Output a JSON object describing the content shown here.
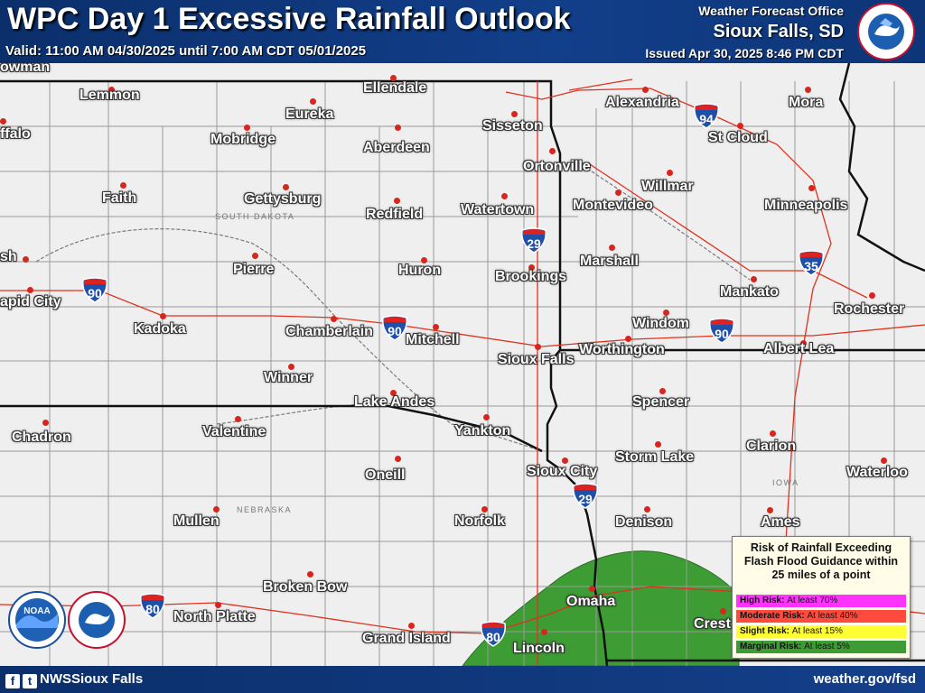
{
  "header": {
    "title": "WPC Day 1 Excessive Rainfall Outlook",
    "valid": "Valid: 11:00 AM 04/30/2025 until 7:00 AM CDT 05/01/2025",
    "wfo": "Weather Forecast Office",
    "office": "Sioux Falls, SD",
    "issued": "Issued Apr 30, 2025 8:46 PM CDT",
    "logo_text": "NATIONAL WEATHER SERVICE"
  },
  "colors": {
    "header_bg": "#0b2f6b",
    "marginal": "#3e9c35",
    "slight": "#ffff33",
    "moderate": "#ff3333",
    "high": "#ff33ff",
    "city_dot": "#d7261e",
    "highway": "#e0301e"
  },
  "cities": [
    {
      "name": "owman"
    },
    {
      "name": "Lemmon"
    },
    {
      "name": "Ellendale"
    },
    {
      "name": "Sisseton"
    },
    {
      "name": "Alexandria"
    },
    {
      "name": "Mora"
    },
    {
      "name": "Eureka"
    },
    {
      "name": "Mobridge"
    },
    {
      "name": "Aberdeen"
    },
    {
      "name": "St Cloud"
    },
    {
      "name": "ffalo"
    },
    {
      "name": "Ortonville"
    },
    {
      "name": "Willmar"
    },
    {
      "name": "Faith"
    },
    {
      "name": "Gettysburg"
    },
    {
      "name": "Redfield"
    },
    {
      "name": "Watertown"
    },
    {
      "name": "Montevideo"
    },
    {
      "name": "Minneapolis"
    },
    {
      "name": "Pierre"
    },
    {
      "name": "Huron"
    },
    {
      "name": "Marshall"
    },
    {
      "name": "Brookings"
    },
    {
      "name": "sh"
    },
    {
      "name": "apid City"
    },
    {
      "name": "Mankato"
    },
    {
      "name": "Rochester"
    },
    {
      "name": "Kadoka"
    },
    {
      "name": "Chamberlain"
    },
    {
      "name": "Mitchell"
    },
    {
      "name": "Windom"
    },
    {
      "name": "Worthington"
    },
    {
      "name": "Sioux Falls"
    },
    {
      "name": "Albert Lea"
    },
    {
      "name": "Winner"
    },
    {
      "name": "Lake Andes"
    },
    {
      "name": "Spencer"
    },
    {
      "name": "Chadron"
    },
    {
      "name": "Valentine"
    },
    {
      "name": "Yankton"
    },
    {
      "name": "Clarion"
    },
    {
      "name": "Storm Lake"
    },
    {
      "name": "Oneill"
    },
    {
      "name": "Sioux City"
    },
    {
      "name": "Waterloo"
    },
    {
      "name": "Mullen"
    },
    {
      "name": "Norfolk"
    },
    {
      "name": "Denison"
    },
    {
      "name": "Ames"
    },
    {
      "name": "Broken Bow"
    },
    {
      "name": "Omaha"
    },
    {
      "name": "North Platte"
    },
    {
      "name": "Crest"
    },
    {
      "name": "Grand Island"
    },
    {
      "name": "Lincoln"
    }
  ],
  "state_labels": [
    "SOUTH DAKOTA",
    "NEBRASKA",
    "IOWA"
  ],
  "interstates": [
    {
      "number": "94"
    },
    {
      "number": "29"
    },
    {
      "number": "35"
    },
    {
      "number": "90"
    },
    {
      "number": "90"
    },
    {
      "number": "90"
    },
    {
      "number": "29"
    },
    {
      "number": "80"
    },
    {
      "number": "80"
    }
  ],
  "legend": {
    "title_lines": [
      "Risk of Rainfall Exceeding",
      "Flash Flood Guidance within",
      "25 miles of a point"
    ],
    "items": [
      {
        "label": "High Risk:",
        "desc": "At least 70%",
        "color": "#ff33ff"
      },
      {
        "label": "Moderate Risk:",
        "desc": "At least 40%",
        "color": "#ff3333"
      },
      {
        "label": "Slight Risk:",
        "desc": "At least 15%",
        "color": "#ffff33"
      },
      {
        "label": "Marginal Risk:",
        "desc": "At least 5%",
        "color": "#3e9c35"
      }
    ]
  },
  "footer": {
    "social": "NWSSioux Falls",
    "site": "weather.gov/fsd",
    "facebook_icon": "facebook-icon",
    "twitter_icon": "twitter-icon"
  },
  "logos": {
    "noaa": "NOAA",
    "nws": "NATIONAL WEATHER SERVICE"
  }
}
